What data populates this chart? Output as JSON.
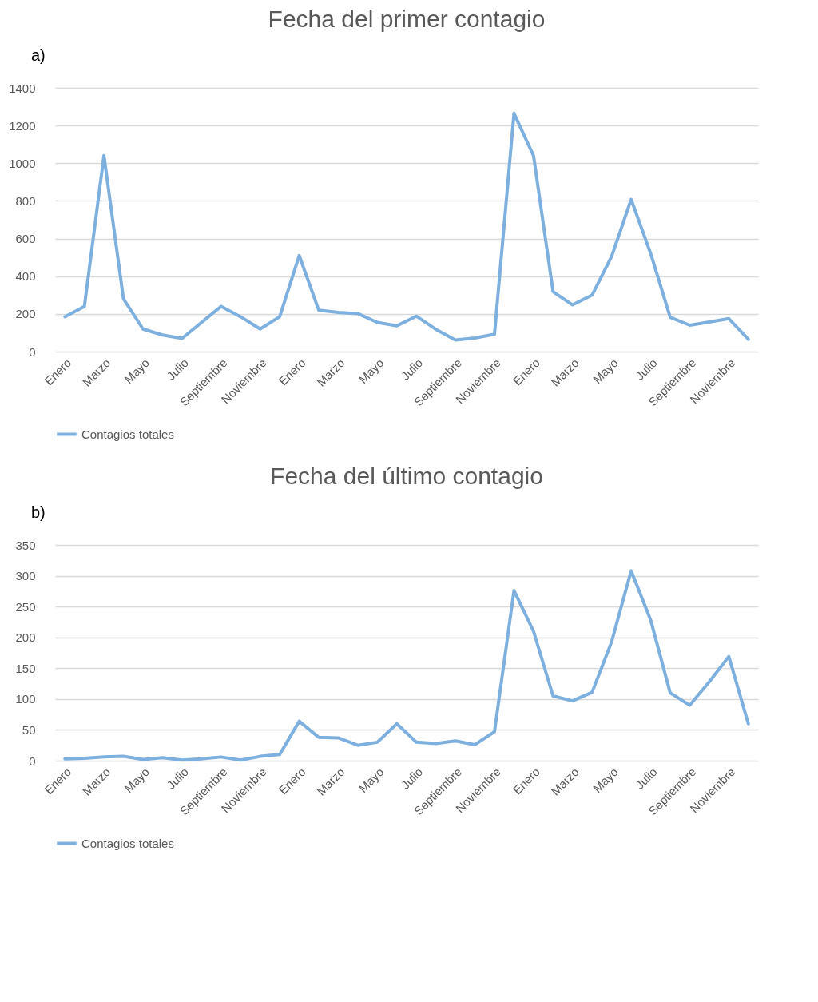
{
  "chart_data": [
    {
      "type": "line",
      "title": "Fecha del primer contagio",
      "annotations": [
        "a)"
      ],
      "categories": [
        "Enero",
        null,
        "Marzo",
        null,
        "Mayo",
        null,
        "Julio",
        null,
        "Septiembre",
        null,
        "Noviembre",
        null,
        "Enero",
        null,
        "Marzo",
        null,
        "Mayo",
        null,
        "Julio",
        null,
        "Septiembre",
        null,
        "Noviembre",
        null,
        "Enero",
        null,
        "Marzo",
        null,
        "Mayo",
        null,
        "Julio",
        null,
        "Septiembre",
        null,
        "Noviembre",
        null
      ],
      "series": [
        {
          "name": "Contagios totales",
          "color": "#7eb0df",
          "values": [
            185,
            240,
            1040,
            280,
            120,
            88,
            70,
            155,
            240,
            185,
            120,
            185,
            510,
            220,
            208,
            202,
            155,
            137,
            188,
            118,
            62,
            72,
            92,
            1265,
            1040,
            318,
            248,
            300,
            505,
            808,
            520,
            182,
            140,
            157,
            175,
            65
          ]
        }
      ],
      "ylim": [
        0,
        1400
      ],
      "yticks": [
        0,
        200,
        400,
        600,
        800,
        1000,
        1200,
        1400
      ],
      "grid": "y",
      "legend": "bottom"
    },
    {
      "type": "line",
      "title": "Fecha del último contagio",
      "annotations": [
        "b)"
      ],
      "categories": [
        "Enero",
        null,
        "Marzo",
        null,
        "Mayo",
        null,
        "Julio",
        null,
        "Septiembre",
        null,
        "Noviembre",
        null,
        "Enero",
        null,
        "Marzo",
        null,
        "Mayo",
        null,
        "Julio",
        null,
        "Septiembre",
        null,
        "Noviembre",
        null,
        "Enero",
        null,
        "Marzo",
        null,
        "Mayo",
        null,
        "Julio",
        null,
        "Septiembre",
        null,
        "Noviembre",
        null
      ],
      "series": [
        {
          "name": "Contagios totales",
          "color": "#7eb0df",
          "values": [
            3,
            4,
            6,
            7,
            2,
            5,
            1,
            3,
            6,
            1,
            7,
            10,
            64,
            38,
            37,
            25,
            30,
            60,
            30,
            28,
            32,
            26,
            47,
            276,
            210,
            105,
            97,
            111,
            193,
            308,
            228,
            110,
            90,
            128,
            169,
            60
          ]
        }
      ],
      "ylim": [
        0,
        350
      ],
      "yticks": [
        0,
        50,
        100,
        150,
        200,
        250,
        300,
        350
      ],
      "grid": "y",
      "legend": "bottom"
    }
  ]
}
